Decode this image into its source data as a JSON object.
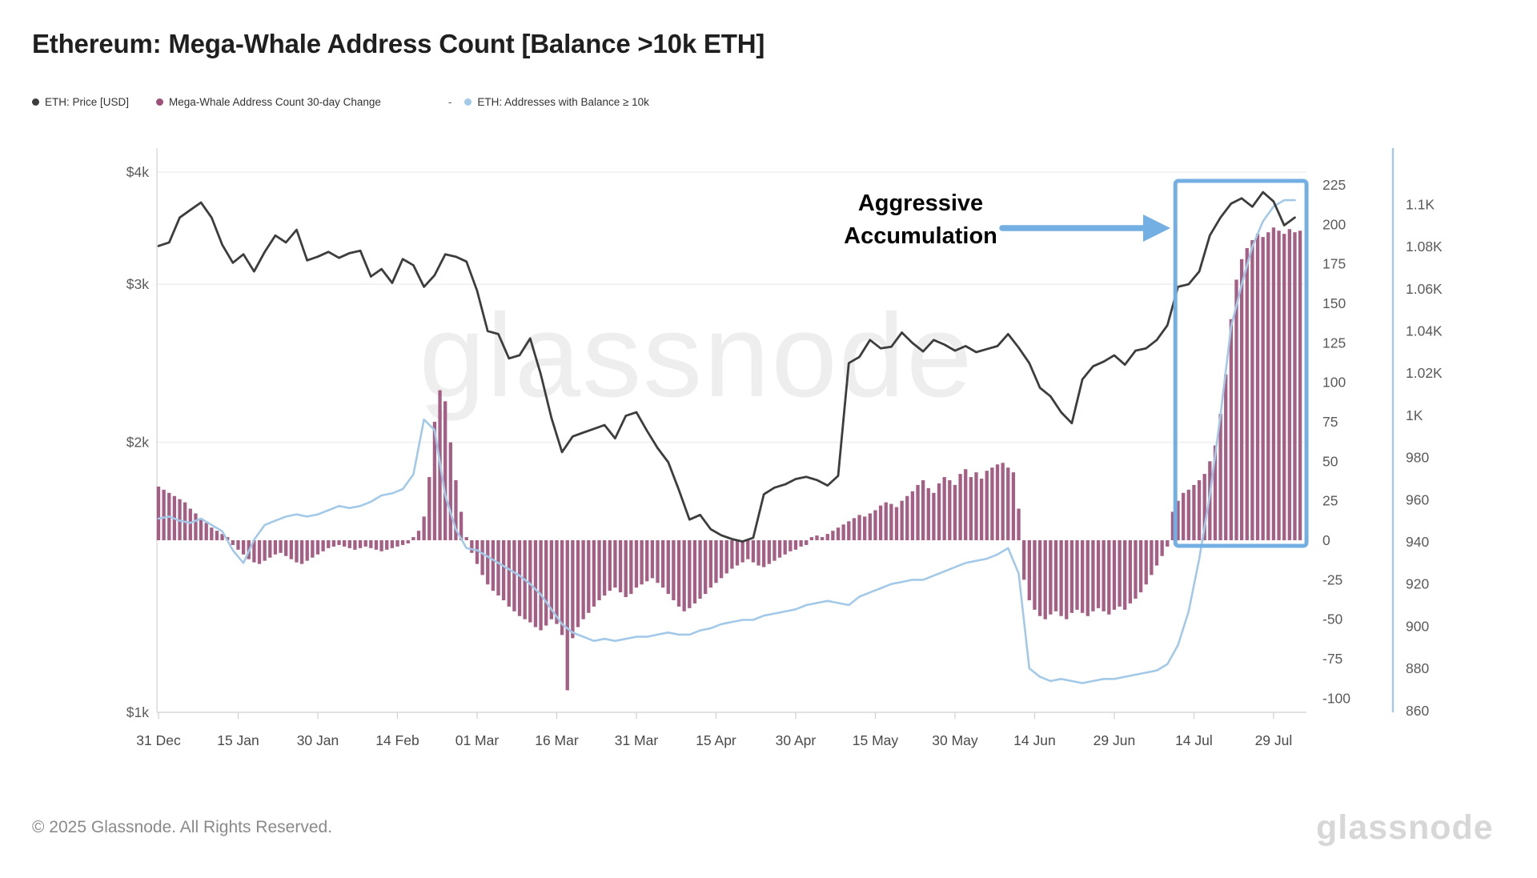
{
  "title": "Ethereum: Mega-Whale Address Count [Balance >10k ETH]",
  "legend": {
    "items": [
      {
        "name": "price",
        "label": "ETH: Price [USD]",
        "color": "#3d3d3d"
      },
      {
        "name": "change",
        "label": "Mega-Whale Address Count 30-day Change",
        "color": "#9d5079"
      },
      {
        "name": "addresses",
        "label": "ETH: Addresses with Balance ≥ 10k",
        "color": "#a3c9e8"
      }
    ],
    "separator": "-"
  },
  "annotation": {
    "line1": "Aggressive",
    "line2": "Accumulation",
    "color": "#74afe4"
  },
  "watermark": "glassnode",
  "footer": {
    "copyright": "© 2025 Glassnode. All Rights Reserved.",
    "logo": "glassnode"
  },
  "chart_data": {
    "type": "line+bar",
    "title": "Ethereum: Mega-Whale Address Count [Balance >10k ETH]",
    "grid": "horizontal-faint",
    "x_axis": {
      "tick_labels": [
        "31 Dec",
        "15 Jan",
        "30 Jan",
        "14 Feb",
        "01 Mar",
        "16 Mar",
        "31 Mar",
        "15 Apr",
        "30 Apr",
        "15 May",
        "30 May",
        "14 Jun",
        "29 Jun",
        "14 Jul",
        "29 Jul"
      ],
      "tick_days": [
        0,
        15,
        30,
        45,
        60,
        75,
        90,
        105,
        120,
        135,
        150,
        165,
        180,
        195,
        210
      ]
    },
    "price_axis": {
      "side": "left",
      "scale": "log",
      "tick_labels": [
        "$4k",
        "$3k",
        "$2k",
        "$1k"
      ],
      "tick_values": [
        4000,
        3000,
        2000,
        1000
      ],
      "range": [
        1000,
        4000
      ]
    },
    "change_axis": {
      "side": "right-inner",
      "tick_labels": [
        "225",
        "200",
        "175",
        "150",
        "125",
        "100",
        "75",
        "50",
        "25",
        "0",
        "-25",
        "-50",
        "-75",
        "-100"
      ],
      "tick_values": [
        225,
        200,
        175,
        150,
        125,
        100,
        75,
        50,
        25,
        0,
        -25,
        -50,
        -75,
        -100
      ],
      "range": [
        -110,
        235
      ]
    },
    "addresses_axis": {
      "side": "right-outer",
      "tick_labels": [
        "1.1K",
        "1.08K",
        "1.06K",
        "1.04K",
        "1.02K",
        "1K",
        "980",
        "960",
        "940",
        "920",
        "900",
        "880",
        "860"
      ],
      "tick_values": [
        1100,
        1080,
        1060,
        1040,
        1020,
        1000,
        980,
        960,
        940,
        920,
        900,
        880,
        860
      ],
      "range": [
        855,
        1110
      ]
    },
    "series": [
      {
        "name": "ETH: Price [USD]",
        "type": "line",
        "axis": "price",
        "color": "#3d3d3d",
        "start_day": 0,
        "day_step": 2,
        "values": [
          3310,
          3340,
          3560,
          3630,
          3700,
          3560,
          3320,
          3170,
          3240,
          3100,
          3260,
          3400,
          3340,
          3450,
          3190,
          3220,
          3260,
          3210,
          3250,
          3270,
          3060,
          3120,
          3010,
          3200,
          3150,
          2980,
          3070,
          3240,
          3220,
          3180,
          2950,
          2660,
          2640,
          2480,
          2500,
          2610,
          2380,
          2130,
          1950,
          2030,
          2050,
          2070,
          2090,
          2020,
          2140,
          2160,
          2060,
          1970,
          1900,
          1770,
          1640,
          1660,
          1600,
          1575,
          1560,
          1550,
          1565,
          1750,
          1780,
          1795,
          1820,
          1830,
          1815,
          1790,
          1835,
          2450,
          2490,
          2600,
          2545,
          2555,
          2650,
          2580,
          2525,
          2600,
          2570,
          2530,
          2560,
          2520,
          2540,
          2560,
          2640,
          2550,
          2450,
          2300,
          2250,
          2160,
          2100,
          2350,
          2430,
          2460,
          2500,
          2440,
          2530,
          2545,
          2600,
          2700,
          2980,
          3000,
          3100,
          3400,
          3560,
          3690,
          3740,
          3660,
          3800,
          3710,
          3490,
          3560
        ]
      },
      {
        "name": "Mega-Whale Address Count 30-day Change",
        "type": "bar",
        "axis": "change",
        "color": "#9d5079",
        "start_day": 0,
        "day_step": 1,
        "values": [
          34,
          32,
          30,
          28,
          26,
          24,
          20,
          17,
          14,
          11,
          8,
          6,
          4,
          2,
          -3,
          -6,
          -9,
          -12,
          -14,
          -15,
          -13,
          -11,
          -9,
          -8,
          -10,
          -12,
          -14,
          -15,
          -13,
          -11,
          -9,
          -7,
          -5,
          -4,
          -3,
          -4,
          -5,
          -6,
          -5,
          -4,
          -5,
          -6,
          -7,
          -6,
          -5,
          -4,
          -3,
          -2,
          2,
          6,
          15,
          40,
          75,
          95,
          88,
          62,
          38,
          18,
          2,
          -8,
          -15,
          -22,
          -28,
          -32,
          -35,
          -38,
          -42,
          -45,
          -48,
          -50,
          -52,
          -55,
          -57,
          -54,
          -50,
          -53,
          -60,
          -95,
          -62,
          -55,
          -50,
          -46,
          -42,
          -38,
          -35,
          -32,
          -30,
          -33,
          -36,
          -34,
          -30,
          -28,
          -26,
          -24,
          -27,
          -30,
          -34,
          -38,
          -42,
          -45,
          -43,
          -40,
          -37,
          -34,
          -30,
          -27,
          -24,
          -21,
          -18,
          -16,
          -14,
          -12,
          -14,
          -16,
          -17,
          -15,
          -13,
          -11,
          -9,
          -7,
          -6,
          -4,
          -3,
          2,
          3,
          2,
          4,
          6,
          8,
          10,
          12,
          14,
          16,
          15,
          17,
          19,
          22,
          24,
          23,
          21,
          25,
          28,
          31,
          35,
          38,
          33,
          30,
          36,
          40,
          38,
          35,
          42,
          45,
          40,
          43,
          39,
          44,
          46,
          48,
          49,
          46,
          43,
          20,
          -25,
          -38,
          -44,
          -48,
          -50,
          -47,
          -45,
          -48,
          -50,
          -46,
          -44,
          -46,
          -48,
          -45,
          -43,
          -45,
          -47,
          -44,
          -42,
          -44,
          -40,
          -37,
          -33,
          -28,
          -22,
          -16,
          -10,
          -4,
          18,
          25,
          30,
          32,
          35,
          38,
          42,
          50,
          60,
          80,
          105,
          140,
          165,
          178,
          185,
          190,
          194,
          192,
          195,
          198,
          196,
          194,
          197,
          195,
          196
        ]
      },
      {
        "name": "ETH: Addresses with Balance ≥ 10k",
        "type": "line",
        "axis": "addresses",
        "color": "#a3c9e8",
        "start_day": 0,
        "day_step": 2,
        "values": [
          951,
          952,
          950,
          949,
          951,
          948,
          945,
          936,
          930,
          941,
          948,
          950,
          952,
          953,
          952,
          953,
          955,
          957,
          956,
          957,
          959,
          962,
          963,
          965,
          972,
          998,
          993,
          962,
          946,
          937,
          936,
          933,
          930,
          927,
          924,
          920,
          915,
          908,
          901,
          897,
          895,
          893,
          894,
          893,
          894,
          895,
          895,
          896,
          897,
          896,
          896,
          898,
          899,
          901,
          902,
          903,
          903,
          905,
          906,
          907,
          908,
          910,
          911,
          912,
          911,
          910,
          914,
          916,
          918,
          920,
          921,
          922,
          922,
          924,
          926,
          928,
          930,
          931,
          932,
          934,
          937,
          925,
          880,
          876,
          874,
          875,
          874,
          873,
          874,
          875,
          875,
          876,
          877,
          878,
          879,
          882,
          891,
          907,
          932,
          962,
          1000,
          1042,
          1062,
          1080,
          1092,
          1099,
          1102,
          1102
        ]
      }
    ],
    "highlight_box": {
      "label": "Aggressive Accumulation",
      "start_day": 191.5,
      "end_day": 216.2,
      "color": "#74afe4"
    }
  }
}
